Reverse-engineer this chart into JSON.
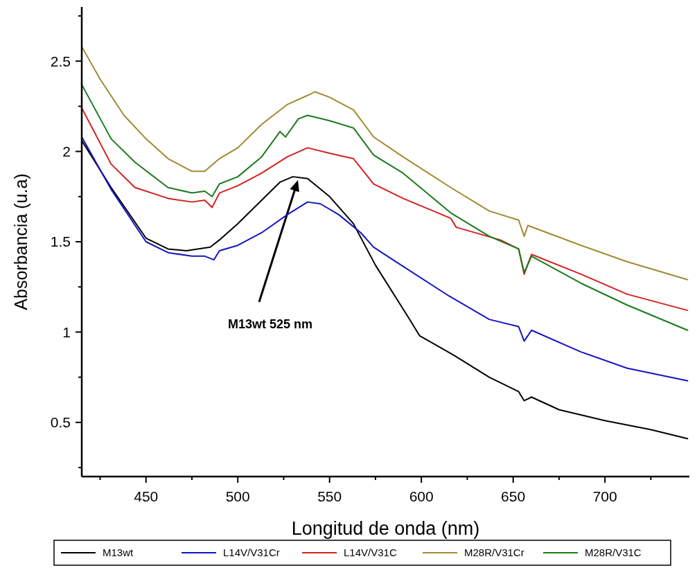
{
  "chart_data": {
    "type": "line",
    "xlabel": "Longitud de onda (nm)",
    "ylabel": "Absorbancia (u.a)",
    "xlim": [
      415,
      746
    ],
    "ylim": [
      0.2,
      2.8
    ],
    "xticks": [
      {
        "value": 425,
        "label": null
      },
      450,
      {
        "value": 475,
        "label": null
      },
      500,
      {
        "value": 525,
        "label": null
      },
      550,
      {
        "value": 575,
        "label": null
      },
      600,
      {
        "value": 625,
        "label": null
      },
      650,
      {
        "value": 675,
        "label": null
      },
      700,
      {
        "value": 725,
        "label": null
      }
    ],
    "yticks": [
      {
        "value": 0.25,
        "label": null
      },
      0.5,
      {
        "value": 0.75,
        "label": null
      },
      1,
      {
        "value": 1.25,
        "label": null
      },
      1.5,
      {
        "value": 1.75,
        "label": null
      },
      2,
      {
        "value": 2.25,
        "label": null
      },
      2.5,
      {
        "value": 2.75,
        "label": null
      }
    ],
    "grid": false,
    "legend": "bottom",
    "line_style": "solid",
    "marker": "none",
    "annotations": [
      "M13wt 525 nm"
    ],
    "series": [
      {
        "name": "M13wt",
        "color": "#000000",
        "x": [
          415,
          431,
          450,
          462,
          472,
          485,
          490,
          500,
          513,
          523,
          530,
          538,
          550,
          563,
          575,
          593,
          599,
          618,
          637,
          653,
          656,
          660,
          675,
          700,
          725,
          745
        ],
        "values": [
          2.06,
          1.8,
          1.52,
          1.46,
          1.45,
          1.47,
          1.51,
          1.6,
          1.73,
          1.83,
          1.86,
          1.85,
          1.75,
          1.6,
          1.37,
          1.08,
          0.98,
          0.87,
          0.75,
          0.67,
          0.62,
          0.64,
          0.57,
          0.51,
          0.46,
          0.41
        ]
      },
      {
        "name": "L14V/V31Cr",
        "color": "#1414c0",
        "x": [
          415,
          431,
          450,
          462,
          475,
          482,
          487,
          490,
          500,
          513,
          527,
          538,
          545,
          555,
          567,
          574,
          586,
          615,
          637,
          653,
          656,
          660,
          687,
          712,
          745
        ],
        "values": [
          2.08,
          1.79,
          1.5,
          1.44,
          1.42,
          1.42,
          1.4,
          1.45,
          1.48,
          1.55,
          1.65,
          1.72,
          1.71,
          1.65,
          1.55,
          1.47,
          1.39,
          1.2,
          1.07,
          1.03,
          0.95,
          1.01,
          0.89,
          0.8,
          0.73
        ]
      },
      {
        "name": "L14V/V31C",
        "color": "#d42020",
        "x": [
          415,
          431,
          444,
          462,
          475,
          482,
          486,
          490,
          500,
          513,
          527,
          538,
          550,
          563,
          574,
          590,
          616,
          619,
          643,
          653,
          656,
          660,
          687,
          712,
          745
        ],
        "values": [
          2.24,
          1.93,
          1.8,
          1.74,
          1.72,
          1.73,
          1.69,
          1.77,
          1.81,
          1.88,
          1.97,
          2.02,
          1.99,
          1.96,
          1.82,
          1.74,
          1.63,
          1.58,
          1.51,
          1.46,
          1.32,
          1.43,
          1.32,
          1.21,
          1.12
        ]
      },
      {
        "name": "M28R/V31Cr",
        "color": "#a08a30",
        "x": [
          415,
          425,
          438,
          450,
          462,
          475,
          482,
          490,
          500,
          513,
          527,
          538,
          542,
          550,
          563,
          574,
          590,
          616,
          637,
          653,
          656,
          658,
          687,
          712,
          745
        ],
        "values": [
          2.58,
          2.4,
          2.2,
          2.07,
          1.96,
          1.89,
          1.89,
          1.96,
          2.02,
          2.15,
          2.26,
          2.31,
          2.33,
          2.3,
          2.23,
          2.08,
          1.97,
          1.8,
          1.67,
          1.62,
          1.53,
          1.59,
          1.48,
          1.39,
          1.29
        ]
      },
      {
        "name": "M28R/V31C",
        "color": "#1a7a1a",
        "x": [
          415,
          431,
          444,
          462,
          475,
          482,
          486,
          490,
          500,
          513,
          523,
          526,
          533,
          538,
          550,
          563,
          574,
          590,
          616,
          637,
          653,
          656,
          660,
          687,
          712,
          745
        ],
        "values": [
          2.37,
          2.07,
          1.94,
          1.8,
          1.77,
          1.78,
          1.75,
          1.82,
          1.86,
          1.97,
          2.11,
          2.08,
          2.18,
          2.2,
          2.17,
          2.13,
          1.98,
          1.88,
          1.66,
          1.53,
          1.46,
          1.33,
          1.42,
          1.27,
          1.15,
          1.01
        ]
      }
    ]
  }
}
